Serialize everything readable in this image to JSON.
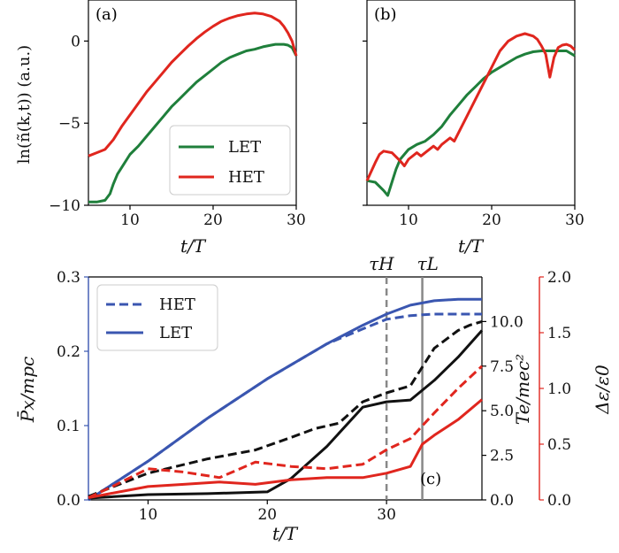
{
  "colors": {
    "let_green": "#1f7f3b",
    "het_red": "#e0261e",
    "px_blue": "#3a56b0",
    "te_black": "#111111",
    "de_red": "#e0261e",
    "tau_h": "#888888",
    "tau_l": "#888888"
  },
  "panel_a": {
    "tag": "(a)",
    "ylabel": "ln(ñ(k,t)) (a.u.)",
    "xlabel": "t/T",
    "legend": [
      "LET",
      "HET"
    ]
  },
  "panel_b": {
    "tag": "(b)",
    "xlabel": "t/T"
  },
  "panel_c": {
    "tag": "(c)",
    "xlabel": "t/T",
    "ylabel_left": "P̄x/mpc",
    "ylabel_right1": "Te/mec²",
    "ylabel_right2": "Δε/ε0",
    "tau_h_label": "τH",
    "tau_l_label": "τL",
    "legend": [
      "HET",
      "LET"
    ]
  },
  "chart_data": [
    {
      "type": "line",
      "panel": "a",
      "xlim": [
        5,
        30
      ],
      "ylim": [
        -10,
        2.5
      ],
      "x_ticks": [
        10,
        20,
        30
      ],
      "y_ticks": [
        0,
        -5,
        -10
      ],
      "series": [
        {
          "name": "LET",
          "x": [
            5,
            6,
            7,
            7.6,
            8,
            8.5,
            9,
            10,
            11,
            12,
            13,
            14,
            15,
            16,
            17,
            18,
            19,
            20,
            21,
            22,
            23,
            24,
            25,
            26,
            27,
            27.5,
            28,
            28.5,
            29,
            29.5,
            30
          ],
          "y": [
            -9.8,
            -9.8,
            -9.7,
            -9.3,
            -8.7,
            -8.1,
            -7.7,
            -6.9,
            -6.4,
            -5.8,
            -5.2,
            -4.6,
            -4.0,
            -3.5,
            -3.0,
            -2.5,
            -2.1,
            -1.7,
            -1.3,
            -1.0,
            -0.8,
            -0.6,
            -0.5,
            -0.35,
            -0.25,
            -0.2,
            -0.2,
            -0.2,
            -0.25,
            -0.4,
            -0.9
          ]
        },
        {
          "name": "HET",
          "x": [
            5,
            6,
            7,
            8,
            9,
            10,
            11,
            12,
            13,
            14,
            15,
            16,
            17,
            18,
            19,
            20,
            21,
            22,
            23,
            24,
            25,
            26,
            27,
            28,
            28.5,
            29,
            29.5,
            30
          ],
          "y": [
            -7.0,
            -6.8,
            -6.6,
            -6.0,
            -5.2,
            -4.5,
            -3.8,
            -3.1,
            -2.5,
            -1.9,
            -1.3,
            -0.8,
            -0.3,
            0.15,
            0.55,
            0.9,
            1.2,
            1.4,
            1.55,
            1.65,
            1.7,
            1.65,
            1.5,
            1.2,
            0.9,
            0.5,
            0.0,
            -0.9
          ]
        }
      ]
    },
    {
      "type": "line",
      "panel": "b",
      "xlim": [
        5,
        30
      ],
      "ylim": [
        -10,
        2.5
      ],
      "x_ticks": [
        10,
        20,
        30
      ],
      "series": [
        {
          "name": "LET",
          "x": [
            5,
            6,
            7,
            7.5,
            8,
            8.5,
            9,
            10,
            11,
            12,
            13,
            14,
            15,
            16,
            17,
            18,
            19,
            20,
            21,
            22,
            23,
            24,
            25,
            26,
            27,
            28,
            29,
            30
          ],
          "y": [
            -8.5,
            -8.6,
            -9.1,
            -9.4,
            -8.6,
            -7.8,
            -7.2,
            -6.6,
            -6.3,
            -6.1,
            -5.7,
            -5.2,
            -4.5,
            -3.9,
            -3.3,
            -2.8,
            -2.3,
            -1.9,
            -1.6,
            -1.3,
            -1.0,
            -0.8,
            -0.65,
            -0.6,
            -0.6,
            -0.6,
            -0.6,
            -0.9
          ]
        },
        {
          "name": "HET",
          "x": [
            5,
            6,
            6.5,
            7,
            8,
            9,
            9.5,
            10,
            11,
            11.5,
            12,
            13,
            13.5,
            14,
            15,
            15.5,
            16,
            17,
            18,
            19,
            20,
            21,
            22,
            23,
            24,
            25,
            25.5,
            26,
            26.5,
            27,
            27.5,
            28,
            28.5,
            29,
            29.5,
            30
          ],
          "y": [
            -8.5,
            -7.4,
            -6.9,
            -6.7,
            -6.8,
            -7.3,
            -7.6,
            -7.2,
            -6.8,
            -7.0,
            -6.8,
            -6.4,
            -6.6,
            -6.3,
            -5.9,
            -6.1,
            -5.6,
            -4.6,
            -3.6,
            -2.6,
            -1.6,
            -0.6,
            0.0,
            0.3,
            0.45,
            0.3,
            0.1,
            -0.3,
            -0.8,
            -2.2,
            -1.0,
            -0.4,
            -0.25,
            -0.2,
            -0.3,
            -0.55
          ]
        }
      ]
    },
    {
      "type": "line",
      "panel": "c",
      "xlim": [
        5,
        38
      ],
      "ylim_left": [
        0,
        0.3
      ],
      "ylim_right1": [
        0,
        12.5
      ],
      "ylim_right2": [
        0,
        2.0
      ],
      "x_ticks": [
        10,
        20,
        30
      ],
      "y_ticks_left": [
        0.0,
        0.1,
        0.2,
        0.3
      ],
      "y_ticks_right1": [
        0.0,
        2.5,
        5.0,
        7.5,
        10.0
      ],
      "y_ticks_right2": [
        0.0,
        0.5,
        1.0,
        1.5,
        2.0
      ],
      "tau_h": 30,
      "tau_l": 33,
      "series": [
        {
          "name": "HET",
          "axis": "left",
          "quantity": "Px",
          "style": "dashed",
          "x": [
            5,
            10,
            15,
            20,
            25,
            28,
            30,
            32,
            34,
            36,
            38
          ],
          "y": [
            0.0,
            0.052,
            0.11,
            0.163,
            0.21,
            0.23,
            0.243,
            0.248,
            0.25,
            0.25,
            0.25
          ]
        },
        {
          "name": "LET",
          "axis": "left",
          "quantity": "Px",
          "style": "solid",
          "x": [
            5,
            10,
            15,
            20,
            25,
            28,
            30,
            32,
            34,
            36,
            38
          ],
          "y": [
            0.0,
            0.052,
            0.11,
            0.163,
            0.21,
            0.235,
            0.25,
            0.262,
            0.268,
            0.27,
            0.27
          ]
        },
        {
          "axis": "right1",
          "quantity": "Te",
          "style": "dashed",
          "x": [
            5,
            10,
            15,
            19,
            22,
            24,
            26,
            28,
            30,
            32,
            34,
            36,
            37,
            38
          ],
          "y": [
            0.2,
            1.5,
            2.3,
            2.8,
            3.5,
            4.0,
            4.3,
            5.5,
            6.0,
            6.4,
            8.5,
            9.5,
            9.8,
            10.0
          ]
        },
        {
          "axis": "right1",
          "quantity": "Te",
          "style": "solid",
          "x": [
            5,
            10,
            15,
            20,
            22,
            25,
            28,
            30,
            32,
            34,
            36,
            38
          ],
          "y": [
            0.1,
            0.3,
            0.35,
            0.45,
            1.2,
            3.0,
            5.2,
            5.5,
            5.6,
            6.7,
            8.0,
            9.5
          ]
        },
        {
          "axis": "right2",
          "quantity": "Δε",
          "style": "dashed",
          "x": [
            5,
            7,
            10,
            13,
            16,
            19,
            22,
            25,
            28,
            30,
            32,
            34,
            36,
            38
          ],
          "y": [
            0.02,
            0.12,
            0.28,
            0.25,
            0.2,
            0.34,
            0.3,
            0.28,
            0.32,
            0.45,
            0.55,
            0.78,
            1.0,
            1.2
          ]
        },
        {
          "axis": "right2",
          "quantity": "Δε",
          "style": "solid",
          "x": [
            5,
            7,
            10,
            13,
            16,
            19,
            22,
            25,
            28,
            30,
            32,
            33,
            34,
            36,
            38
          ],
          "y": [
            0.02,
            0.06,
            0.12,
            0.14,
            0.16,
            0.14,
            0.18,
            0.2,
            0.2,
            0.24,
            0.3,
            0.5,
            0.58,
            0.72,
            0.9
          ]
        }
      ]
    }
  ]
}
